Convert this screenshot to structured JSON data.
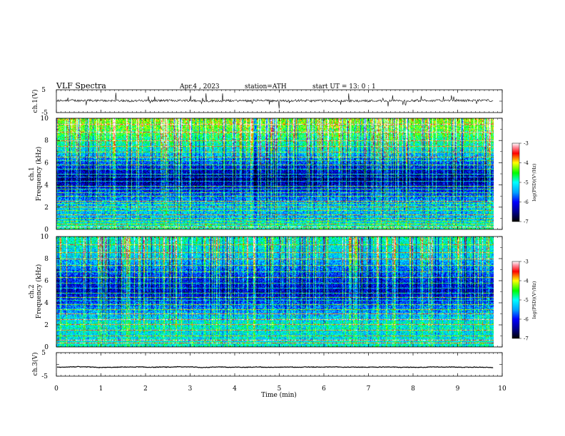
{
  "header": {
    "title": "VLF  Spectra",
    "date": "Apr.4  , 2023",
    "station": "station=ATH",
    "start": "start  UT  =    13: 0  : 1"
  },
  "chart_data": [
    {
      "id": "ch1-waveform",
      "type": "line",
      "ylabel": "ch.1(V)",
      "ylim": [
        -5,
        5
      ],
      "y_ticks": [
        "5",
        "-5"
      ],
      "xlim": [
        0,
        10
      ],
      "description_values": {
        "baseline_V": 0.2,
        "noise_V": 0.5,
        "spike_max_V": 3.5,
        "data_end_min": 9.8
      }
    },
    {
      "id": "ch1-spectrogram",
      "type": "heatmap",
      "ylabel_lines": [
        "ch.1",
        "Frequency  (kHz)"
      ],
      "ylim": [
        0,
        10
      ],
      "y_ticks": [
        "0",
        "2",
        "4",
        "6",
        "8",
        "10"
      ],
      "xlim": [
        0,
        10
      ],
      "colorbar": {
        "label": "log(PSD)(V²/Hz)",
        "range": [
          -7,
          -3
        ],
        "ticks": [
          "-3",
          "-4",
          "-5",
          "-6",
          "-7"
        ]
      },
      "tones_kHz": [
        0.2,
        0.45,
        0.7,
        1.0,
        1.3,
        1.7,
        2.0,
        2.3,
        2.5,
        3.0,
        3.3,
        3.6,
        3.9,
        4.3,
        4.7,
        5.0,
        5.4,
        5.8,
        6.2,
        6.5,
        7.0,
        7.5,
        8.0,
        8.8,
        9.5
      ],
      "background_profile": [
        {
          "kHz": 0,
          "logPSD": -4.8
        },
        {
          "kHz": 1,
          "logPSD": -5.4
        },
        {
          "kHz": 2,
          "logPSD": -5.3
        },
        {
          "kHz": 3.5,
          "logPSD": -6.0
        },
        {
          "kHz": 4.5,
          "logPSD": -6.6
        },
        {
          "kHz": 5.5,
          "logPSD": -6.1
        },
        {
          "kHz": 7,
          "logPSD": -5.2
        },
        {
          "kHz": 8.5,
          "logPSD": -4.6
        },
        {
          "kHz": 10,
          "logPSD": -4.2
        }
      ]
    },
    {
      "id": "ch2-spectrogram",
      "type": "heatmap",
      "ylabel_lines": [
        "ch.2",
        "Frequency  (kHz)"
      ],
      "ylim": [
        0,
        10
      ],
      "y_ticks": [
        "0",
        "2",
        "4",
        "6",
        "8",
        "10"
      ],
      "xlim": [
        0,
        10
      ],
      "colorbar": {
        "label": "log(PSD)(V²/Hz)",
        "range": [
          -7,
          -3
        ],
        "ticks": [
          "-3",
          "-4",
          "-5",
          "-6",
          "-7"
        ]
      },
      "tones_kHz": [
        0.3,
        0.6,
        1.0,
        1.5,
        2.0,
        2.5,
        3.0,
        3.4,
        3.8,
        4.2,
        4.5,
        4.9,
        5.3,
        5.8,
        6.3,
        6.8,
        7.4,
        8.0,
        8.6,
        9.3
      ],
      "background_profile": [
        {
          "kHz": 0,
          "logPSD": -5.0
        },
        {
          "kHz": 1,
          "logPSD": -5.2
        },
        {
          "kHz": 2,
          "logPSD": -5.0
        },
        {
          "kHz": 3.5,
          "logPSD": -5.6
        },
        {
          "kHz": 5,
          "logPSD": -6.3
        },
        {
          "kHz": 6.5,
          "logPSD": -5.9
        },
        {
          "kHz": 8,
          "logPSD": -5.3
        },
        {
          "kHz": 10,
          "logPSD": -4.9
        }
      ]
    },
    {
      "id": "ch3-waveform",
      "type": "line",
      "ylabel": "ch.3(V)",
      "ylim": [
        -5,
        5
      ],
      "y_ticks": [
        "5",
        "-5"
      ],
      "xlim": [
        0,
        10
      ],
      "description_values": {
        "baseline_V": -1.2,
        "noise_V": 0.12,
        "data_end_min": 9.8
      }
    }
  ],
  "x_axis": {
    "label": "Time  (min)",
    "ticks": [
      "0",
      "1",
      "2",
      "3",
      "4",
      "5",
      "6",
      "7",
      "8",
      "9",
      "10"
    ],
    "range": [
      0,
      10
    ]
  }
}
